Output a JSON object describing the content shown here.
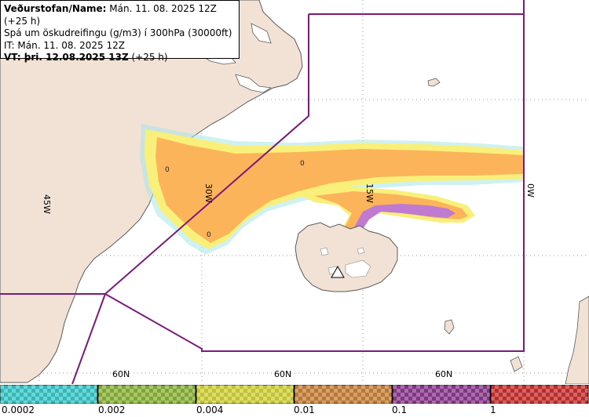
{
  "info": {
    "line1_bold": "Veðurstofan/Name:",
    "line1_rest": " Mán. 11. 08. 2025 12Z (+25 h)",
    "line2": "Spá um öskudreifingu (g/m3) í 300hPa (30000ft)",
    "line3": "IT: Mán. 11. 08. 2025 12Z",
    "line4_bold": "VT: þri. 12.08.2025 13Z",
    "line4_rest": " (+25 h)"
  },
  "map": {
    "longitude_labels": [
      "45W",
      "30W",
      "15W",
      "0W"
    ],
    "latitude_labels": [
      "60N",
      "60N",
      "60N"
    ],
    "concentration_markers": [
      "0",
      "0",
      "0"
    ],
    "colors": {
      "land": "#f2e2d6",
      "coast": "#5a5a5a",
      "boundary": "#7b1a7b",
      "plume_low": "#f8f07a",
      "plume_mid": "#fbb45a",
      "plume_high": "#c07ad0",
      "plume_edge": "#a8e6e8"
    }
  },
  "legend": {
    "labels": [
      "0.0002",
      "0.002",
      "0.004",
      "0.01",
      "0.1",
      "1"
    ],
    "colors": [
      "#3cc8c8",
      "#8cb43c",
      "#d2d23c",
      "#c8823c",
      "#8c3c8c",
      "#c83232"
    ]
  }
}
